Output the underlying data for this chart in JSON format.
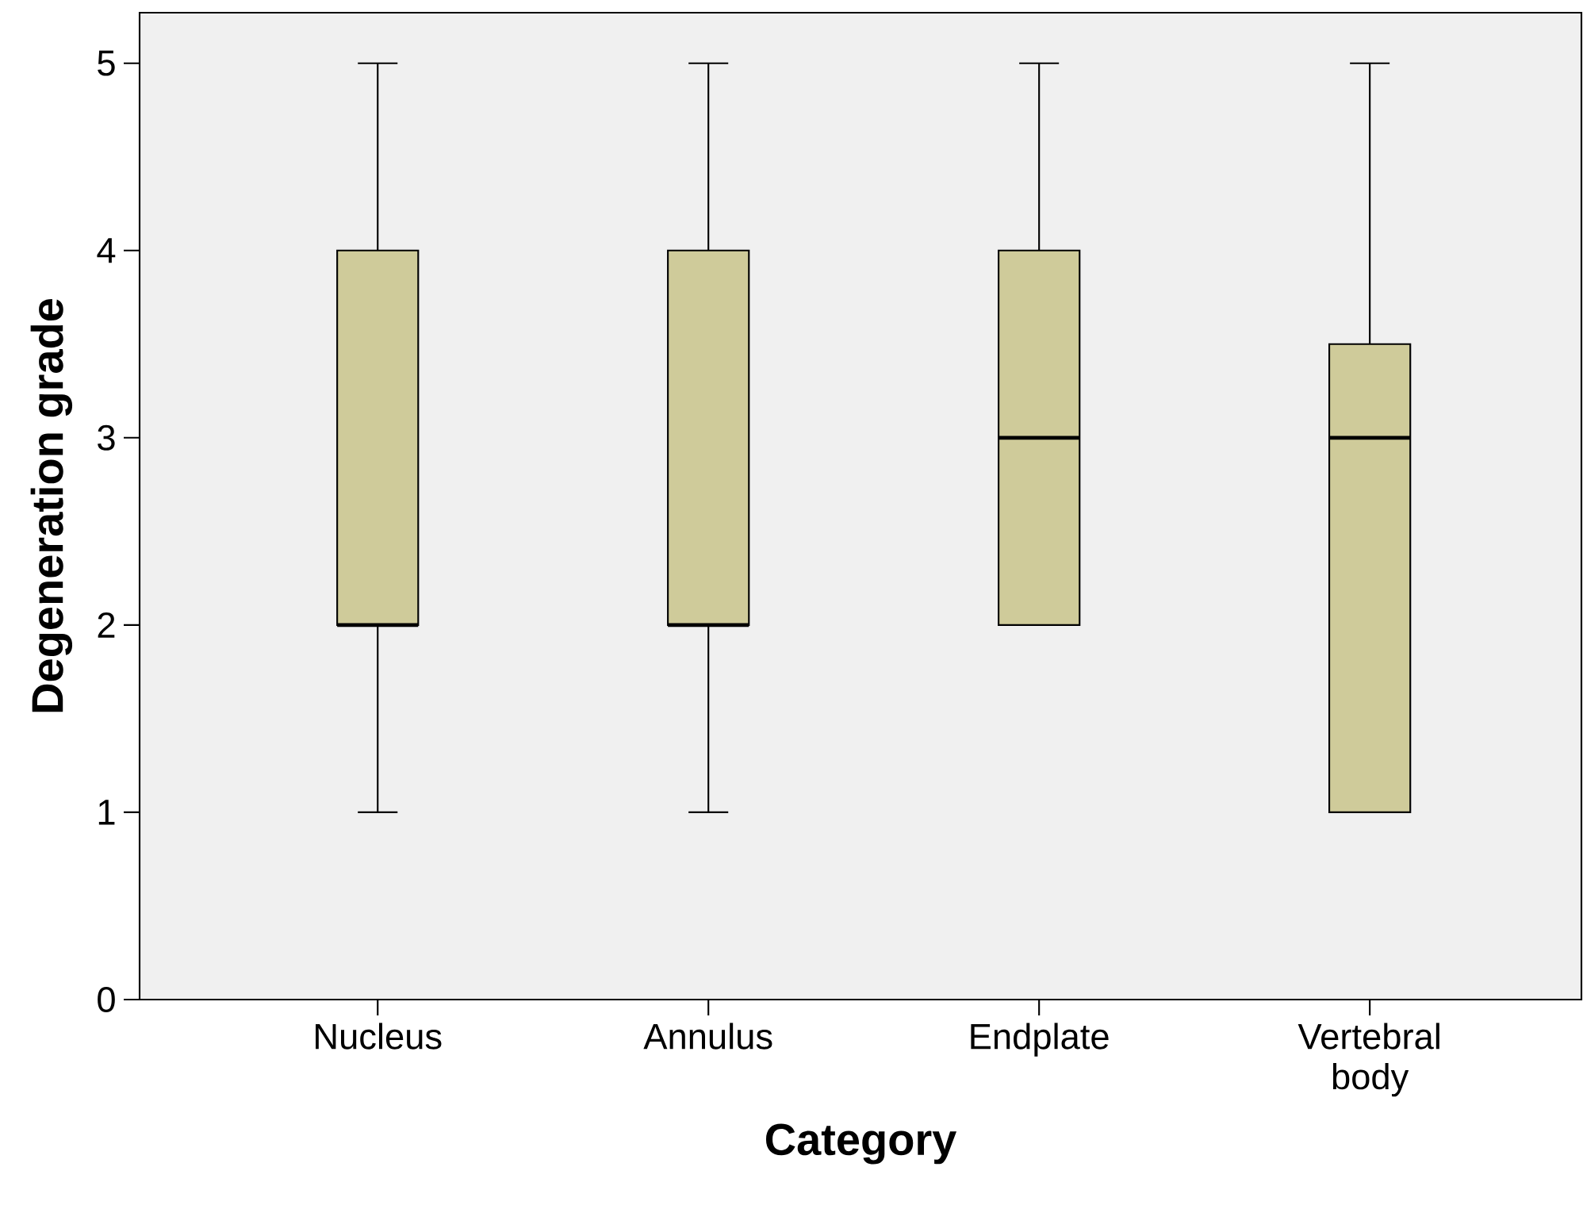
{
  "chart_data": {
    "type": "box",
    "xlabel": "Category",
    "ylabel": "Degeneration grade",
    "categories": [
      "Nucleus",
      "Annulus",
      "Endplate",
      "Vertebral body"
    ],
    "boxes": [
      {
        "low": 1,
        "q1": 2,
        "median": 2,
        "q3": 4,
        "high": 5
      },
      {
        "low": 1,
        "q1": 2,
        "median": 2,
        "q3": 4,
        "high": 5
      },
      {
        "low": 2,
        "q1": 2,
        "median": 3,
        "q3": 4,
        "high": 5
      },
      {
        "low": 1,
        "q1": 1,
        "median": 3,
        "q3": 3.5,
        "high": 5
      }
    ],
    "color": "#cfcb9a",
    "ylim": [
      0,
      5.27
    ],
    "yticks": [
      0,
      1,
      2,
      3,
      4,
      5
    ]
  }
}
